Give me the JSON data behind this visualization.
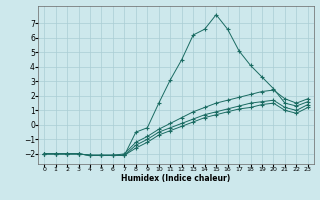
{
  "xlabel": "Humidex (Indice chaleur)",
  "background_color": "#cde8ec",
  "grid_color": "#aacdd4",
  "line_color": "#1a6b62",
  "xlim": [
    -0.5,
    23.5
  ],
  "ylim": [
    -2.7,
    8.2
  ],
  "yticks": [
    -2,
    -1,
    0,
    1,
    2,
    3,
    4,
    5,
    6,
    7
  ],
  "xticks": [
    0,
    1,
    2,
    3,
    4,
    5,
    6,
    7,
    8,
    9,
    10,
    11,
    12,
    13,
    14,
    15,
    16,
    17,
    18,
    19,
    20,
    21,
    22,
    23
  ],
  "lines": [
    {
      "x": [
        0,
        1,
        2,
        3,
        4,
        5,
        6,
        7,
        8,
        9,
        10,
        11,
        12,
        13,
        14,
        15,
        16,
        17,
        18,
        19,
        20,
        21,
        22,
        23
      ],
      "y": [
        -2.0,
        -2.0,
        -2.0,
        -2.0,
        -2.1,
        -2.1,
        -2.1,
        -2.1,
        -0.5,
        -0.2,
        1.5,
        3.1,
        4.5,
        6.2,
        6.6,
        7.6,
        6.6,
        5.1,
        4.1,
        3.3,
        2.5,
        1.5,
        1.3,
        1.6
      ]
    },
    {
      "x": [
        0,
        1,
        2,
        3,
        4,
        5,
        6,
        7,
        8,
        9,
        10,
        11,
        12,
        13,
        14,
        15,
        16,
        17,
        18,
        19,
        20,
        21,
        22,
        23
      ],
      "y": [
        -2.0,
        -2.0,
        -2.0,
        -2.0,
        -2.1,
        -2.1,
        -2.1,
        -2.0,
        -1.2,
        -0.8,
        -0.3,
        0.1,
        0.5,
        0.9,
        1.2,
        1.5,
        1.7,
        1.9,
        2.1,
        2.3,
        2.4,
        1.8,
        1.5,
        1.8
      ]
    },
    {
      "x": [
        0,
        1,
        2,
        3,
        4,
        5,
        6,
        7,
        8,
        9,
        10,
        11,
        12,
        13,
        14,
        15,
        16,
        17,
        18,
        19,
        20,
        21,
        22,
        23
      ],
      "y": [
        -2.0,
        -2.0,
        -2.0,
        -2.0,
        -2.1,
        -2.1,
        -2.1,
        -2.1,
        -1.4,
        -1.0,
        -0.5,
        -0.2,
        0.1,
        0.4,
        0.7,
        0.9,
        1.1,
        1.3,
        1.5,
        1.6,
        1.7,
        1.2,
        1.0,
        1.4
      ]
    },
    {
      "x": [
        0,
        1,
        2,
        3,
        4,
        5,
        6,
        7,
        8,
        9,
        10,
        11,
        12,
        13,
        14,
        15,
        16,
        17,
        18,
        19,
        20,
        21,
        22,
        23
      ],
      "y": [
        -2.0,
        -2.0,
        -2.0,
        -2.0,
        -2.1,
        -2.1,
        -2.1,
        -2.1,
        -1.6,
        -1.2,
        -0.7,
        -0.4,
        -0.1,
        0.2,
        0.5,
        0.7,
        0.9,
        1.1,
        1.2,
        1.4,
        1.5,
        1.0,
        0.8,
        1.2
      ]
    }
  ]
}
